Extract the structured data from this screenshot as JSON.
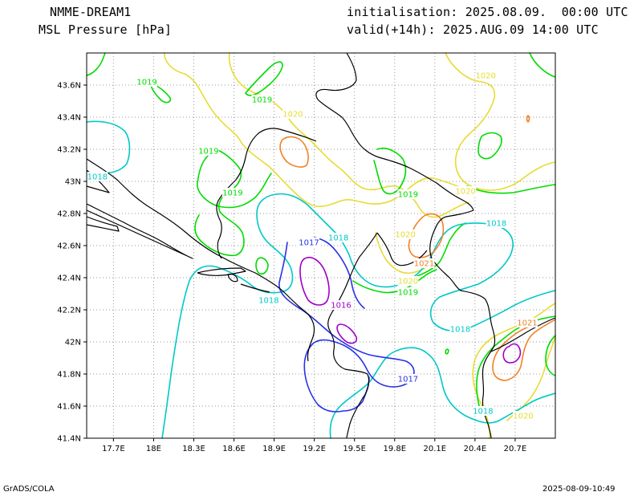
{
  "header": {
    "model": "NMME-DREAM1",
    "field": "MSL Pressure [hPa]",
    "init": "initialisation: 2025.08.09.  00:00 UTC",
    "valid": "valid(+14h): 2025.AUG.09 14:00 UTC"
  },
  "footer": {
    "left": "GrADS/COLA",
    "right": "2025-08-09-10:49"
  },
  "map": {
    "lon_range": [
      17.5,
      21.0
    ],
    "lat_range": [
      41.4,
      43.8
    ],
    "lon_ticks": [
      {
        "v": 17.7,
        "label": "17.7E"
      },
      {
        "v": 18.0,
        "label": "18E"
      },
      {
        "v": 18.3,
        "label": "18.3E"
      },
      {
        "v": 18.6,
        "label": "18.6E"
      },
      {
        "v": 18.9,
        "label": "18.9E"
      },
      {
        "v": 19.2,
        "label": "19.2E"
      },
      {
        "v": 19.5,
        "label": "19.5E"
      },
      {
        "v": 19.8,
        "label": "19.8E"
      },
      {
        "v": 20.1,
        "label": "20.1E"
      },
      {
        "v": 20.4,
        "label": "20.4E"
      },
      {
        "v": 20.7,
        "label": "20.7E"
      }
    ],
    "lat_ticks": [
      {
        "v": 41.4,
        "label": "41.4N"
      },
      {
        "v": 41.6,
        "label": "41.6N"
      },
      {
        "v": 41.8,
        "label": "41.8N"
      },
      {
        "v": 42.0,
        "label": "42N"
      },
      {
        "v": 42.2,
        "label": "42.2N"
      },
      {
        "v": 42.4,
        "label": "42.4N"
      },
      {
        "v": 42.6,
        "label": "42.6N"
      },
      {
        "v": 42.8,
        "label": "42.8N"
      },
      {
        "v": 43.0,
        "label": "43N"
      },
      {
        "v": 43.2,
        "label": "43.2N"
      },
      {
        "v": 43.4,
        "label": "43.4N"
      },
      {
        "v": 43.6,
        "label": "43.6N"
      }
    ],
    "grid": true,
    "contour_colors": {
      "1016": "#a000c8",
      "1017": "#2832e6",
      "1018": "#00c8c8",
      "1019": "#00dc00",
      "1020": "#e6dc32",
      "1021": "#f08228"
    },
    "contour_labels": [
      {
        "text": "1019",
        "lon": 17.95,
        "lat": 43.62,
        "level": "1019"
      },
      {
        "text": "1019",
        "lon": 18.81,
        "lat": 43.51,
        "level": "1019"
      },
      {
        "text": "1020",
        "lon": 19.04,
        "lat": 43.42,
        "level": "1020"
      },
      {
        "text": "1020",
        "lon": 20.48,
        "lat": 43.66,
        "level": "1020"
      },
      {
        "text": "1019",
        "lon": 18.41,
        "lat": 43.19,
        "level": "1019"
      },
      {
        "text": "1018",
        "lon": 17.58,
        "lat": 43.03,
        "level": "1018"
      },
      {
        "text": "1019",
        "lon": 18.59,
        "lat": 42.93,
        "level": "1019"
      },
      {
        "text": "1019",
        "lon": 19.9,
        "lat": 42.92,
        "level": "1019"
      },
      {
        "text": "1020",
        "lon": 20.33,
        "lat": 42.94,
        "level": "1020"
      },
      {
        "text": "1018",
        "lon": 20.56,
        "lat": 42.74,
        "level": "1018"
      },
      {
        "text": "1017",
        "lon": 19.16,
        "lat": 42.62,
        "level": "1017"
      },
      {
        "text": "1018",
        "lon": 19.38,
        "lat": 42.65,
        "level": "1018"
      },
      {
        "text": "1020",
        "lon": 19.88,
        "lat": 42.67,
        "level": "1020"
      },
      {
        "text": "1021",
        "lon": 20.02,
        "lat": 42.49,
        "level": "1021"
      },
      {
        "text": "1020",
        "lon": 19.9,
        "lat": 42.38,
        "level": "1020"
      },
      {
        "text": "1019",
        "lon": 19.9,
        "lat": 42.31,
        "level": "1019"
      },
      {
        "text": "1018",
        "lon": 18.86,
        "lat": 42.26,
        "level": "1018"
      },
      {
        "text": "1016",
        "lon": 19.4,
        "lat": 42.23,
        "level": "1016"
      },
      {
        "text": "1018",
        "lon": 20.29,
        "lat": 42.08,
        "level": "1018"
      },
      {
        "text": "1021",
        "lon": 20.79,
        "lat": 42.12,
        "level": "1021"
      },
      {
        "text": "1017",
        "lon": 19.9,
        "lat": 41.77,
        "level": "1017"
      },
      {
        "text": "1018",
        "lon": 20.46,
        "lat": 41.57,
        "level": "1018"
      },
      {
        "text": "1020",
        "lon": 20.76,
        "lat": 41.54,
        "level": "1020"
      }
    ]
  }
}
